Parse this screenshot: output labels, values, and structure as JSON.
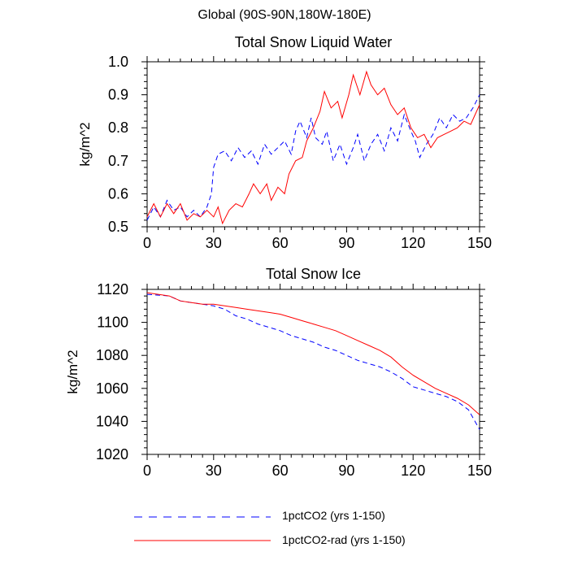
{
  "page": {
    "title": "Global (90S-90N,180W-180E)"
  },
  "legend": [
    {
      "name": "1pctCO2 (yrs 1-150)",
      "color": "#0000ff",
      "dash": "dashed"
    },
    {
      "name": "1pctCO2-rad (yrs 1-150)",
      "color": "#ff0000",
      "dash": "solid"
    }
  ],
  "chart_data": [
    {
      "type": "line",
      "title": "Total Snow Liquid Water",
      "xlabel": "",
      "ylabel": "kg/m^2",
      "xlim": [
        0,
        150
      ],
      "ylim": [
        0.5,
        1.0
      ],
      "xticks": [
        0,
        30,
        60,
        90,
        120,
        150
      ],
      "yticks": [
        0.5,
        0.6,
        0.7,
        0.8,
        0.9,
        1.0
      ],
      "ytick_labels": [
        "0.5",
        "0.6",
        "0.7",
        "0.8",
        "0.9",
        "1.0"
      ],
      "grid": false,
      "series": [
        {
          "name": "1pctCO2 (yrs 1-150)",
          "color": "#0000ff",
          "dash": "dashed",
          "points": [
            [
              0,
              0.52
            ],
            [
              3,
              0.56
            ],
            [
              6,
              0.53
            ],
            [
              9,
              0.58
            ],
            [
              12,
              0.55
            ],
            [
              15,
              0.56
            ],
            [
              18,
              0.53
            ],
            [
              21,
              0.55
            ],
            [
              24,
              0.53
            ],
            [
              27,
              0.56
            ],
            [
              29,
              0.6
            ],
            [
              30,
              0.68
            ],
            [
              32,
              0.72
            ],
            [
              35,
              0.73
            ],
            [
              38,
              0.7
            ],
            [
              41,
              0.74
            ],
            [
              44,
              0.71
            ],
            [
              47,
              0.73
            ],
            [
              50,
              0.69
            ],
            [
              53,
              0.75
            ],
            [
              56,
              0.72
            ],
            [
              59,
              0.74
            ],
            [
              62,
              0.76
            ],
            [
              65,
              0.72
            ],
            [
              67,
              0.79
            ],
            [
              69,
              0.82
            ],
            [
              72,
              0.77
            ],
            [
              74,
              0.83
            ],
            [
              76,
              0.77
            ],
            [
              79,
              0.75
            ],
            [
              81,
              0.79
            ],
            [
              84,
              0.7
            ],
            [
              87,
              0.75
            ],
            [
              90,
              0.69
            ],
            [
              93,
              0.74
            ],
            [
              95,
              0.78
            ],
            [
              98,
              0.7
            ],
            [
              101,
              0.75
            ],
            [
              104,
              0.78
            ],
            [
              107,
              0.73
            ],
            [
              110,
              0.8
            ],
            [
              113,
              0.76
            ],
            [
              116,
              0.84
            ],
            [
              119,
              0.79
            ],
            [
              121,
              0.76
            ],
            [
              123,
              0.71
            ],
            [
              126,
              0.75
            ],
            [
              129,
              0.78
            ],
            [
              132,
              0.83
            ],
            [
              135,
              0.8
            ],
            [
              138,
              0.84
            ],
            [
              141,
              0.82
            ],
            [
              144,
              0.83
            ],
            [
              147,
              0.86
            ],
            [
              150,
              0.9
            ]
          ]
        },
        {
          "name": "1pctCO2-rad (yrs 1-150)",
          "color": "#ff0000",
          "dash": "solid",
          "points": [
            [
              0,
              0.53
            ],
            [
              3,
              0.57
            ],
            [
              6,
              0.53
            ],
            [
              9,
              0.57
            ],
            [
              12,
              0.54
            ],
            [
              15,
              0.57
            ],
            [
              18,
              0.52
            ],
            [
              21,
              0.54
            ],
            [
              24,
              0.53
            ],
            [
              27,
              0.55
            ],
            [
              30,
              0.53
            ],
            [
              32,
              0.56
            ],
            [
              34,
              0.51
            ],
            [
              37,
              0.55
            ],
            [
              40,
              0.57
            ],
            [
              43,
              0.56
            ],
            [
              46,
              0.6
            ],
            [
              48,
              0.63
            ],
            [
              51,
              0.6
            ],
            [
              54,
              0.63
            ],
            [
              56,
              0.58
            ],
            [
              59,
              0.62
            ],
            [
              62,
              0.6
            ],
            [
              64,
              0.66
            ],
            [
              67,
              0.7
            ],
            [
              70,
              0.71
            ],
            [
              72,
              0.76
            ],
            [
              75,
              0.8
            ],
            [
              78,
              0.85
            ],
            [
              80,
              0.91
            ],
            [
              83,
              0.86
            ],
            [
              86,
              0.88
            ],
            [
              88,
              0.83
            ],
            [
              91,
              0.9
            ],
            [
              93,
              0.96
            ],
            [
              96,
              0.9
            ],
            [
              99,
              0.97
            ],
            [
              101,
              0.93
            ],
            [
              104,
              0.9
            ],
            [
              107,
              0.92
            ],
            [
              110,
              0.87
            ],
            [
              113,
              0.84
            ],
            [
              116,
              0.86
            ],
            [
              119,
              0.8
            ],
            [
              122,
              0.77
            ],
            [
              125,
              0.78
            ],
            [
              128,
              0.74
            ],
            [
              131,
              0.77
            ],
            [
              134,
              0.78
            ],
            [
              137,
              0.79
            ],
            [
              140,
              0.8
            ],
            [
              143,
              0.82
            ],
            [
              146,
              0.81
            ],
            [
              148,
              0.84
            ],
            [
              150,
              0.87
            ]
          ]
        }
      ]
    },
    {
      "type": "line",
      "title": "Total Snow Ice",
      "xlabel": "",
      "ylabel": "kg/m^2",
      "xlim": [
        0,
        150
      ],
      "ylim": [
        1020,
        1120
      ],
      "xticks": [
        0,
        30,
        60,
        90,
        120,
        150
      ],
      "yticks": [
        1020,
        1040,
        1060,
        1080,
        1100,
        1120
      ],
      "ytick_labels": [
        "1020",
        "1040",
        "1060",
        "1080",
        "1100",
        "1120"
      ],
      "grid": false,
      "series": [
        {
          "name": "1pctCO2 (yrs 1-150)",
          "color": "#0000ff",
          "dash": "dashed",
          "points": [
            [
              0,
              1117
            ],
            [
              10,
              1116
            ],
            [
              15,
              1113
            ],
            [
              20,
              1112
            ],
            [
              25,
              1111
            ],
            [
              30,
              1110
            ],
            [
              35,
              1108
            ],
            [
              40,
              1104
            ],
            [
              45,
              1102
            ],
            [
              50,
              1099
            ],
            [
              55,
              1097
            ],
            [
              60,
              1095
            ],
            [
              65,
              1092
            ],
            [
              70,
              1090
            ],
            [
              75,
              1088
            ],
            [
              80,
              1085
            ],
            [
              85,
              1083
            ],
            [
              90,
              1080
            ],
            [
              95,
              1077
            ],
            [
              100,
              1075
            ],
            [
              105,
              1073
            ],
            [
              110,
              1070
            ],
            [
              115,
              1066
            ],
            [
              120,
              1061
            ],
            [
              125,
              1059
            ],
            [
              130,
              1057
            ],
            [
              135,
              1055
            ],
            [
              140,
              1052
            ],
            [
              145,
              1047
            ],
            [
              150,
              1035
            ]
          ]
        },
        {
          "name": "1pctCO2-rad (yrs 1-150)",
          "color": "#ff0000",
          "dash": "solid",
          "points": [
            [
              0,
              1118
            ],
            [
              10,
              1116
            ],
            [
              15,
              1113
            ],
            [
              20,
              1112
            ],
            [
              25,
              1111
            ],
            [
              30,
              1111
            ],
            [
              35,
              1110
            ],
            [
              40,
              1109
            ],
            [
              45,
              1108
            ],
            [
              50,
              1107
            ],
            [
              55,
              1106
            ],
            [
              60,
              1105
            ],
            [
              65,
              1103
            ],
            [
              70,
              1101
            ],
            [
              75,
              1099
            ],
            [
              80,
              1097
            ],
            [
              85,
              1095
            ],
            [
              90,
              1092
            ],
            [
              95,
              1089
            ],
            [
              100,
              1086
            ],
            [
              105,
              1083
            ],
            [
              110,
              1079
            ],
            [
              115,
              1073
            ],
            [
              120,
              1068
            ],
            [
              125,
              1064
            ],
            [
              130,
              1060
            ],
            [
              135,
              1057
            ],
            [
              140,
              1054
            ],
            [
              145,
              1050
            ],
            [
              150,
              1044
            ]
          ]
        }
      ]
    }
  ]
}
